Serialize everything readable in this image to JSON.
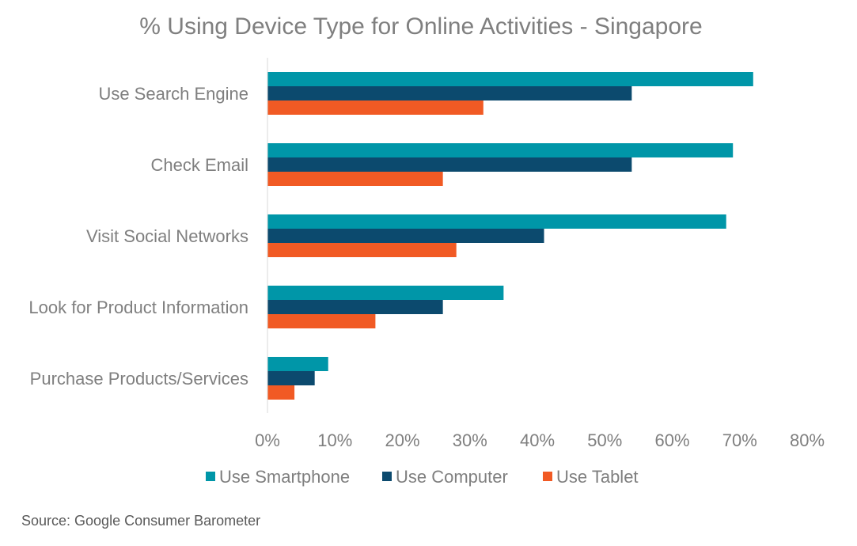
{
  "chart_data": {
    "type": "bar",
    "orientation": "horizontal",
    "title": "% Using Device Type for Online Activities - Singapore",
    "categories": [
      "Use Search Engine",
      "Check Email",
      "Visit Social Networks",
      "Look for Product Information",
      "Purchase Products/Services"
    ],
    "series": [
      {
        "name": "Use Smartphone",
        "color": "#0096a8",
        "values": [
          72,
          69,
          68,
          35,
          9
        ]
      },
      {
        "name": "Use Computer",
        "color": "#0c4a6e",
        "values": [
          54,
          54,
          41,
          26,
          7
        ]
      },
      {
        "name": "Use Tablet",
        "color": "#f15a24",
        "values": [
          32,
          26,
          28,
          16,
          4
        ]
      }
    ],
    "xlim": [
      0,
      80
    ],
    "x_ticks": [
      "0%",
      "10%",
      "20%",
      "30%",
      "40%",
      "50%",
      "60%",
      "70%",
      "80%"
    ],
    "legend_position": "bottom",
    "grid": false
  },
  "source": "Source: Google Consumer Barometer"
}
